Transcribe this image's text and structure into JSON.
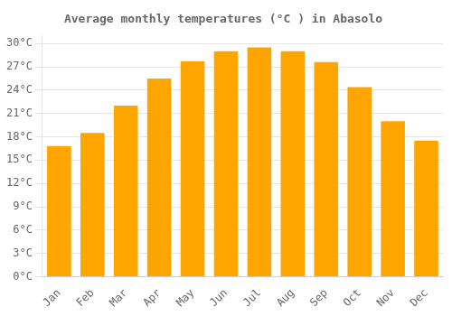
{
  "chart_data": {
    "type": "bar",
    "title": "Average monthly temperatures (°C ) in Abasolo",
    "categories": [
      "Jan",
      "Feb",
      "Mar",
      "Apr",
      "May",
      "Jun",
      "Jul",
      "Aug",
      "Sep",
      "Oct",
      "Nov",
      "Dec"
    ],
    "values": [
      16.8,
      18.5,
      22.0,
      25.5,
      27.7,
      29.0,
      29.5,
      29.0,
      27.6,
      24.4,
      20.0,
      17.5
    ],
    "color": "#FFA500",
    "ylim": [
      0,
      31
    ],
    "yticks": [
      {
        "value": 0,
        "label": "0°C"
      },
      {
        "value": 3,
        "label": "3°C"
      },
      {
        "value": 6,
        "label": "6°C"
      },
      {
        "value": 9,
        "label": "9°C"
      },
      {
        "value": 12,
        "label": "12°C"
      },
      {
        "value": 15,
        "label": "15°C"
      },
      {
        "value": 18,
        "label": "18°C"
      },
      {
        "value": 21,
        "label": "21°C"
      },
      {
        "value": 24,
        "label": "24°C"
      },
      {
        "value": 27,
        "label": "27°C"
      },
      {
        "value": 30,
        "label": "30°C"
      }
    ],
    "grid": true
  }
}
